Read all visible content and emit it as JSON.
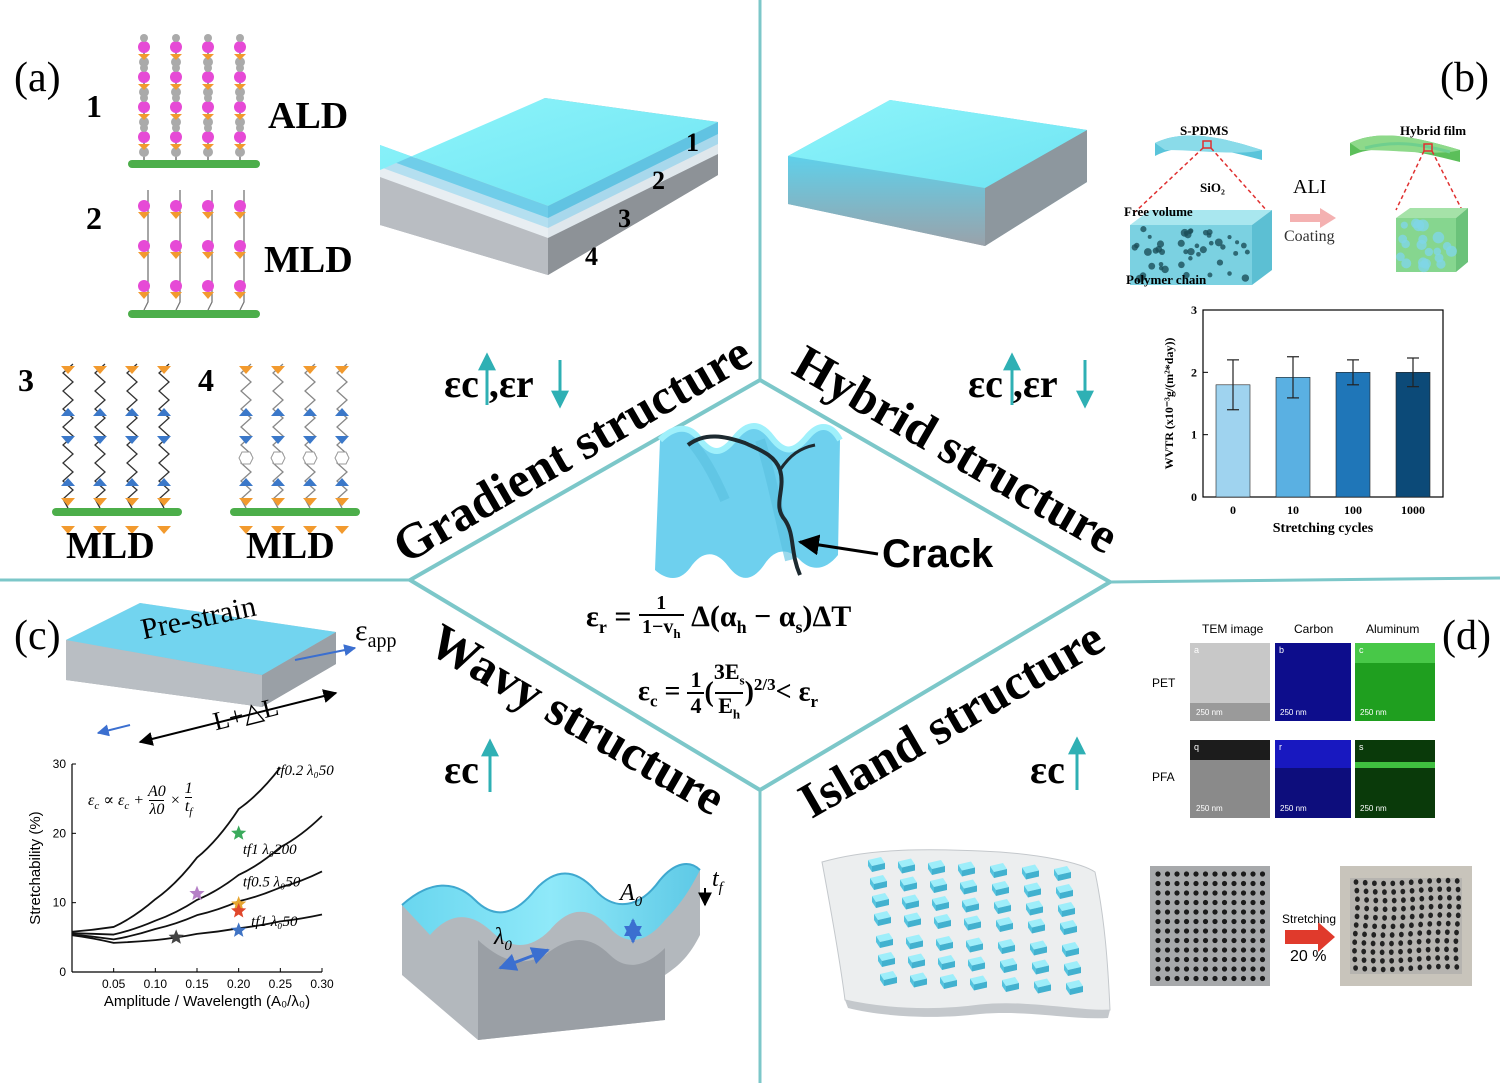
{
  "panels": {
    "a": {
      "letter": "(a)",
      "items": [
        {
          "num": "1",
          "label": "ALD"
        },
        {
          "num": "2",
          "label": "MLD"
        },
        {
          "num": "3",
          "label": "MLD"
        },
        {
          "num": "4",
          "label": "MLD"
        }
      ],
      "layer_numbers": [
        "1",
        "2",
        "3",
        "4"
      ],
      "strain_eps": "εc",
      "strain_sep": ",εr"
    },
    "b": {
      "letter": "(b)",
      "s_pdms": "S-PDMS",
      "hybrid_film": "Hybrid film",
      "sio2": "SiO₂",
      "free_volume": "Free volume",
      "polymer_chain": "Polymer chain",
      "ali": "ALI",
      "coating": "Coating",
      "strain_eps": "εc",
      "strain_sep": ",εr"
    },
    "c": {
      "letter": "(c)",
      "prestrain": "Pre-strain",
      "eps_app": "εapp",
      "length": "L+△L",
      "strain_eps": "εc",
      "a0": "A₀",
      "lambda0": "λ₀",
      "tf": "t_f",
      "formula": "εc ∝ εc + A0/λ0 × 1/tf"
    },
    "d": {
      "letter": "(d)",
      "tem_headers": [
        "TEM image",
        "Carbon",
        "Aluminum"
      ],
      "rows": [
        "PET",
        "PFA"
      ],
      "tile_letters": [
        "a",
        "b",
        "c",
        "q",
        "r",
        "s"
      ],
      "scale": "250 nm",
      "stretching": "Stretching",
      "percent": "20 %",
      "strain_eps": "εc"
    }
  },
  "center": {
    "titles": {
      "gradient": "Gradient structure",
      "hybrid": "Hybrid structure",
      "wavy": "Wavy structure",
      "island": "Island structure"
    },
    "crack": "Crack",
    "eq1": "εr = 1/(1−vh) Δ(αh − αs)ΔT",
    "eq2": "εc = 1/4 (3Es/Eh)^2/3 < εr"
  },
  "chart_data": [
    {
      "type": "bar",
      "categories": [
        "0",
        "10",
        "100",
        "1000"
      ],
      "values": [
        1.8,
        1.92,
        2.0,
        2.0
      ],
      "errors": [
        0.4,
        0.33,
        0.2,
        0.23
      ],
      "xlabel": "Stretching cycles",
      "ylabel": "WVTR (x10⁻³g/(m²*day))",
      "ylim": [
        0,
        3
      ],
      "yticks": [
        "0",
        "1",
        "2",
        "3"
      ],
      "colors": [
        "#9fd3ef",
        "#5ab0e2",
        "#1f76b8",
        "#0c4a78"
      ]
    },
    {
      "type": "line",
      "xlabel": "Amplitude / Wavelength (A₀/λ₀)",
      "ylabel": "Stretchability (%)",
      "xlim": [
        0,
        0.3
      ],
      "ylim": [
        0,
        30
      ],
      "xticks": [
        "0.05",
        "0.10",
        "0.15",
        "0.20",
        "0.25",
        "0.30"
      ],
      "yticks": [
        "0",
        "10",
        "20",
        "30"
      ],
      "series": [
        {
          "name": "tf0.2 λ₀50",
          "x": [
            0.0,
            0.05,
            0.1,
            0.15,
            0.2,
            0.25
          ],
          "y": [
            5.8,
            6.5,
            10.5,
            16.5,
            23.5,
            29.5
          ]
        },
        {
          "name": "tf1 λ₀200",
          "x": [
            0.0,
            0.05,
            0.1,
            0.15,
            0.2,
            0.25,
            0.3
          ],
          "y": [
            5.6,
            5.4,
            7.4,
            10.4,
            14.0,
            18.0,
            22.5
          ]
        },
        {
          "name": "tf0.5 λ₀50",
          "x": [
            0.0,
            0.05,
            0.1,
            0.15,
            0.2,
            0.25,
            0.3
          ],
          "y": [
            5.4,
            4.7,
            6.2,
            8.2,
            10.2,
            12.2,
            14.5
          ]
        },
        {
          "name": "tf1 λ₀50",
          "x": [
            0.0,
            0.05,
            0.1,
            0.15,
            0.2,
            0.25,
            0.3
          ],
          "y": [
            5.3,
            4.2,
            4.6,
            5.5,
            6.3,
            7.3,
            8.3
          ]
        }
      ],
      "stars": [
        {
          "x": 0.125,
          "y": 5.0,
          "color": "#444444"
        },
        {
          "x": 0.15,
          "y": 11.3,
          "color": "#b57fc6"
        },
        {
          "x": 0.2,
          "y": 20.0,
          "color": "#3aaa5c"
        },
        {
          "x": 0.2,
          "y": 9.8,
          "color": "#e6a531"
        },
        {
          "x": 0.2,
          "y": 8.8,
          "color": "#e0472c"
        },
        {
          "x": 0.2,
          "y": 6.0,
          "color": "#3f73c4"
        }
      ]
    }
  ],
  "colors": {
    "teal_line": "#6fc3c5",
    "film_top": "#86f2f8",
    "film_side": "#4ab8d8",
    "substrate": "#b9bec3"
  }
}
